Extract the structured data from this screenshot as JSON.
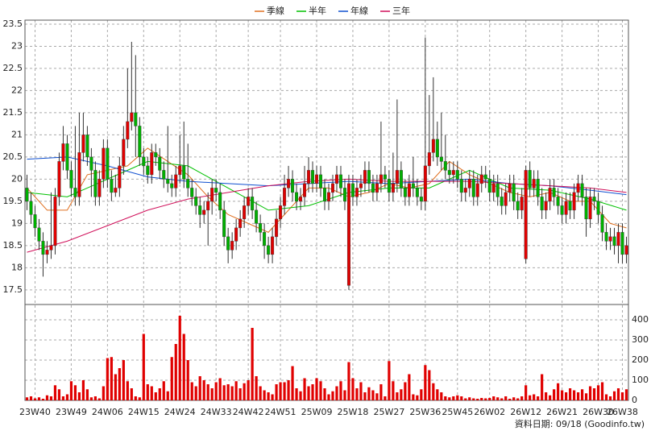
{
  "chart_data": {
    "type": "candlestick",
    "legend": "top",
    "grid": true,
    "up_color": "#e00000",
    "down_color": "#00b000",
    "lines": [
      {
        "name": "季線",
        "color": "#e07020",
        "x": [
          0,
          5,
          10,
          15,
          20,
          25,
          30,
          35,
          40,
          45,
          50,
          55,
          60,
          65,
          70,
          75,
          80,
          85,
          90,
          95,
          100,
          105,
          110,
          115,
          120,
          125,
          130,
          135,
          140,
          145,
          149
        ],
        "values": [
          19.8,
          19.3,
          19.3,
          20.1,
          20.2,
          20.3,
          20.7,
          20.4,
          20.1,
          19.6,
          19.2,
          19.0,
          18.8,
          19.3,
          19.8,
          19.8,
          19.6,
          19.7,
          19.9,
          19.8,
          19.9,
          20.4,
          20.1,
          19.9,
          19.7,
          19.6,
          19.7,
          19.5,
          19.5,
          19.0,
          18.9
        ]
      },
      {
        "name": "半年",
        "color": "#00c000",
        "x": [
          0,
          10,
          20,
          30,
          40,
          50,
          60,
          70,
          80,
          90,
          100,
          110,
          120,
          130,
          140,
          149
        ],
        "values": [
          19.7,
          19.6,
          20.0,
          20.4,
          20.3,
          19.8,
          19.3,
          19.4,
          19.7,
          19.8,
          19.8,
          20.2,
          19.8,
          19.75,
          19.55,
          19.3
        ]
      },
      {
        "name": "年線",
        "color": "#1050d0",
        "x": [
          0,
          10,
          20,
          30,
          40,
          50,
          60,
          70,
          80,
          90,
          100,
          110,
          120,
          130,
          140,
          149
        ],
        "values": [
          20.45,
          20.5,
          20.3,
          20.05,
          19.95,
          19.9,
          19.85,
          19.9,
          19.95,
          19.9,
          19.95,
          20.0,
          19.9,
          19.85,
          19.75,
          19.65
        ]
      },
      {
        "name": "三年",
        "color": "#d0105a",
        "x": [
          0,
          10,
          20,
          30,
          40,
          50,
          60,
          70,
          80,
          90,
          100,
          110,
          120,
          130,
          140,
          149
        ],
        "values": [
          18.35,
          18.6,
          18.95,
          19.3,
          19.55,
          19.7,
          19.85,
          19.95,
          20.0,
          19.95,
          19.95,
          19.95,
          19.9,
          19.85,
          19.8,
          19.7
        ]
      }
    ],
    "categories": [
      null,
      null,
      "23W40",
      null,
      null,
      null,
      null,
      null,
      null,
      null,
      null,
      "23W49",
      null,
      null,
      null,
      null,
      null,
      null,
      null,
      null,
      "24W06",
      null,
      null,
      null,
      null,
      null,
      null,
      null,
      null,
      "24W15",
      null,
      null,
      null,
      null,
      null,
      null,
      null,
      null,
      "24W24",
      null,
      null,
      null,
      null,
      null,
      null,
      null,
      null,
      "24W33",
      null,
      null,
      null,
      null,
      null,
      null,
      null,
      "24W42",
      null,
      null,
      null,
      null,
      null,
      null,
      null,
      "24W51",
      null,
      null,
      null,
      null,
      null,
      null,
      null,
      null,
      "25W09",
      null,
      null,
      null,
      null,
      null,
      null,
      null,
      null,
      "25W18",
      null,
      null,
      null,
      null,
      null,
      null,
      null,
      null,
      "25W27",
      null,
      null,
      null,
      null,
      null,
      null,
      null,
      null,
      "25W36",
      null,
      null,
      null,
      null,
      null,
      null,
      null,
      "25W45",
      null,
      null,
      null,
      null,
      null,
      null,
      null,
      "26W02",
      null,
      null,
      null,
      null,
      null,
      null,
      null,
      null,
      "26W12",
      null,
      null,
      null,
      null,
      null,
      null,
      null,
      null,
      "26W21",
      null,
      null,
      null,
      null,
      null,
      null,
      null,
      null,
      "26W30",
      null,
      null,
      null,
      null,
      null,
      "26W38",
      null
    ],
    "open": [
      19.8,
      19.5,
      19.2,
      18.9,
      18.6,
      18.3,
      18.4,
      18.5,
      19.6,
      20.4,
      20.8,
      20.2,
      19.8,
      19.6,
      20.6,
      21.0,
      20.5,
      20.2,
      19.6,
      20.0,
      20.7,
      20.0,
      19.7,
      19.8,
      20.3,
      20.9,
      21.3,
      21.5,
      21.2,
      20.5,
      20.3,
      20.1,
      20.6,
      20.5,
      20.2,
      20.0,
      19.9,
      19.8,
      20.1,
      20.3,
      20.0,
      19.8,
      19.6,
      19.4,
      19.2,
      19.3,
      19.5,
      19.8,
      19.7,
      19.3,
      18.7,
      18.4,
      18.6,
      18.9,
      19.1,
      19.4,
      19.6,
      19.3,
      19.0,
      18.8,
      18.5,
      18.3,
      18.7,
      19.1,
      19.4,
      19.8,
      20.0,
      19.7,
      19.5,
      19.6,
      19.9,
      20.2,
      19.9,
      20.1,
      19.8,
      19.5,
      19.7,
      19.9,
      20.1,
      19.8,
      17.6,
      19.9,
      19.6,
      19.8,
      19.9,
      20.2,
      19.9,
      19.7,
      19.9,
      20.1,
      20.0,
      19.7,
      19.9,
      20.2,
      19.8,
      19.6,
      19.9,
      19.8,
      19.6,
      19.5,
      20.3,
      20.6,
      20.9,
      20.5,
      20.4,
      20.2,
      20.1,
      20.2,
      20.0,
      19.7,
      19.8,
      20.0,
      19.6,
      19.9,
      20.1,
      20.0,
      19.7,
      19.9,
      19.6,
      19.4,
      19.7,
      19.9,
      19.5,
      19.3,
      18.2,
      20.2,
      19.8,
      20.0,
      19.6,
      19.3,
      19.5,
      19.8,
      19.6,
      19.4,
      19.2,
      19.5,
      19.3,
      19.7,
      19.9,
      19.6,
      19.1,
      19.6,
      19.5,
      19.2,
      18.8,
      18.6,
      18.7,
      18.5,
      18.8,
      18.3
    ],
    "close": [
      19.5,
      19.2,
      18.9,
      18.6,
      18.3,
      18.4,
      18.5,
      19.6,
      20.4,
      20.8,
      20.2,
      19.8,
      19.6,
      20.6,
      21.0,
      20.5,
      20.2,
      19.6,
      20.0,
      20.7,
      20.0,
      19.7,
      19.8,
      20.3,
      20.9,
      21.3,
      21.5,
      21.2,
      20.5,
      20.3,
      20.1,
      20.6,
      20.5,
      20.2,
      20.0,
      19.9,
      19.8,
      20.1,
      20.3,
      20.0,
      19.8,
      19.6,
      19.4,
      19.2,
      19.3,
      19.5,
      19.8,
      19.7,
      19.3,
      18.7,
      18.4,
      18.6,
      18.9,
      19.1,
      19.4,
      19.6,
      19.3,
      19.0,
      18.8,
      18.5,
      18.3,
      18.7,
      19.1,
      19.4,
      19.8,
      20.0,
      19.7,
      19.5,
      19.6,
      19.9,
      20.2,
      19.9,
      20.1,
      19.8,
      19.5,
      19.7,
      19.9,
      20.1,
      19.8,
      19.5,
      19.9,
      19.6,
      19.8,
      19.9,
      20.2,
      19.9,
      19.7,
      19.9,
      20.1,
      20.0,
      19.7,
      19.9,
      20.2,
      19.8,
      19.6,
      19.9,
      19.8,
      19.6,
      19.5,
      20.3,
      20.6,
      20.9,
      20.5,
      20.4,
      20.2,
      20.1,
      20.2,
      20.0,
      19.7,
      19.8,
      20.0,
      19.6,
      19.9,
      20.1,
      20.0,
      19.7,
      19.9,
      19.6,
      19.4,
      19.7,
      19.9,
      19.5,
      19.3,
      19.6,
      20.2,
      19.8,
      20.0,
      19.6,
      19.3,
      19.5,
      19.8,
      19.6,
      19.4,
      19.2,
      19.5,
      19.3,
      19.7,
      19.9,
      19.6,
      19.1,
      19.6,
      19.5,
      19.2,
      18.8,
      18.6,
      18.7,
      18.5,
      18.8,
      18.3,
      18.5
    ],
    "high": [
      20.1,
      19.7,
      19.4,
      19.1,
      18.8,
      18.6,
      19.7,
      19.8,
      20.6,
      21.2,
      21.0,
      20.4,
      21.2,
      21.5,
      21.5,
      21.2,
      20.7,
      20.4,
      20.2,
      20.9,
      20.9,
      20.2,
      20.1,
      20.5,
      21.2,
      22.5,
      23.1,
      22.8,
      21.4,
      20.7,
      20.5,
      20.8,
      20.8,
      20.7,
      20.4,
      21.2,
      20.1,
      20.3,
      21.0,
      21.3,
      20.8,
      20.0,
      19.8,
      19.6,
      19.5,
      19.7,
      20.0,
      20.0,
      19.9,
      19.5,
      18.9,
      18.8,
      19.1,
      19.3,
      19.6,
      19.8,
      19.8,
      19.5,
      19.2,
      19.0,
      18.7,
      18.9,
      19.3,
      19.6,
      20.1,
      20.3,
      20.2,
      19.9,
      19.8,
      20.3,
      20.5,
      20.4,
      20.3,
      20.3,
      20.0,
      19.9,
      20.1,
      20.3,
      20.3,
      20.0,
      20.1,
      20.1,
      20.0,
      20.1,
      20.4,
      20.4,
      20.1,
      20.1,
      21.3,
      20.3,
      20.2,
      20.6,
      21.8,
      20.4,
      20.0,
      20.1,
      20.5,
      20.0,
      19.8,
      23.2,
      21.9,
      22.3,
      21.3,
      21.5,
      21.0,
      20.4,
      20.4,
      20.4,
      20.2,
      20.0,
      20.2,
      20.2,
      20.1,
      20.3,
      20.3,
      20.2,
      20.1,
      20.1,
      19.8,
      19.9,
      20.1,
      20.1,
      19.7,
      19.8,
      20.3,
      20.4,
      20.2,
      20.2,
      19.8,
      19.7,
      20.0,
      20.0,
      19.8,
      19.6,
      19.7,
      19.7,
      19.9,
      20.1,
      20.1,
      19.8,
      19.8,
      19.8,
      19.7,
      19.4,
      19.0,
      18.9,
      18.9,
      19.0,
      19.0,
      18.7
    ],
    "low": [
      19.3,
      19.0,
      18.7,
      18.4,
      17.8,
      18.1,
      18.2,
      18.3,
      19.4,
      20.2,
      20.0,
      19.6,
      19.4,
      19.4,
      20.4,
      20.3,
      19.6,
      19.4,
      19.4,
      19.8,
      19.8,
      19.5,
      19.6,
      19.6,
      20.1,
      20.7,
      21.1,
      20.5,
      20.3,
      20.1,
      19.9,
      19.9,
      20.3,
      20.0,
      19.8,
      19.7,
      19.6,
      19.6,
      19.9,
      19.8,
      19.6,
      19.4,
      19.2,
      18.9,
      19.0,
      18.5,
      19.2,
      19.5,
      19.1,
      18.5,
      18.1,
      18.2,
      18.4,
      18.7,
      18.9,
      19.2,
      19.1,
      18.8,
      18.6,
      18.2,
      18.1,
      18.1,
      18.5,
      18.9,
      19.2,
      19.6,
      19.5,
      19.3,
      19.3,
      19.4,
      19.7,
      19.7,
      19.7,
      19.6,
      19.3,
      19.3,
      19.5,
      19.7,
      19.6,
      19.3,
      17.5,
      19.4,
      19.4,
      19.6,
      19.7,
      19.7,
      19.5,
      19.5,
      19.7,
      19.8,
      19.5,
      19.5,
      19.7,
      19.6,
      19.4,
      19.4,
      19.6,
      19.4,
      19.3,
      19.3,
      20.1,
      20.4,
      20.3,
      20.2,
      20.0,
      19.9,
      19.9,
      19.8,
      19.5,
      19.5,
      19.6,
      19.4,
      19.4,
      19.7,
      19.8,
      19.5,
      19.5,
      19.4,
      19.2,
      19.2,
      19.5,
      19.3,
      19.1,
      19.1,
      18.1,
      19.6,
      19.6,
      19.4,
      19.1,
      19.1,
      19.3,
      19.4,
      19.2,
      19.0,
      19.0,
      19.1,
      19.1,
      19.5,
      19.4,
      18.7,
      18.9,
      19.3,
      19.0,
      18.6,
      18.4,
      18.4,
      18.3,
      18.1,
      18.1,
      18.1
    ],
    "ylim": [
      17.17,
      23.59
    ],
    "yticks": [
      17.5,
      18,
      18.5,
      19,
      19.5,
      20,
      20.5,
      21,
      21.5,
      22,
      22.5,
      23,
      23.5
    ],
    "volume": {
      "color": "#e00000",
      "ylim": [
        0,
        476
      ],
      "yticks": [
        0,
        100,
        200,
        300,
        400
      ],
      "values": [
        15,
        20,
        10,
        15,
        8,
        25,
        20,
        75,
        55,
        20,
        30,
        95,
        75,
        40,
        100,
        55,
        15,
        20,
        10,
        70,
        210,
        215,
        130,
        160,
        200,
        95,
        60,
        20,
        15,
        330,
        80,
        70,
        40,
        60,
        95,
        45,
        215,
        280,
        420,
        330,
        200,
        90,
        70,
        120,
        100,
        80,
        60,
        90,
        110,
        75,
        80,
        70,
        95,
        60,
        85,
        100,
        360,
        120,
        70,
        50,
        40,
        30,
        80,
        90,
        90,
        100,
        170,
        60,
        45,
        110,
        70,
        80,
        110,
        95,
        60,
        30,
        45,
        70,
        95,
        50,
        190,
        110,
        60,
        90,
        40,
        65,
        50,
        35,
        80,
        20,
        195,
        95,
        40,
        55,
        90,
        130,
        30,
        25,
        55,
        175,
        150,
        85,
        55,
        40,
        20,
        15,
        20,
        25,
        20,
        10,
        15,
        10,
        8,
        12,
        10,
        12,
        20,
        15,
        10,
        20,
        8,
        15,
        10,
        20,
        75,
        25,
        30,
        20,
        130,
        40,
        25,
        55,
        85,
        50,
        40,
        60,
        50,
        40,
        55,
        35,
        70,
        60,
        75,
        90,
        30,
        20,
        45,
        60,
        40,
        55
      ]
    },
    "source_note": "資料日期: 09/18 (Goodinfo.tw)"
  }
}
